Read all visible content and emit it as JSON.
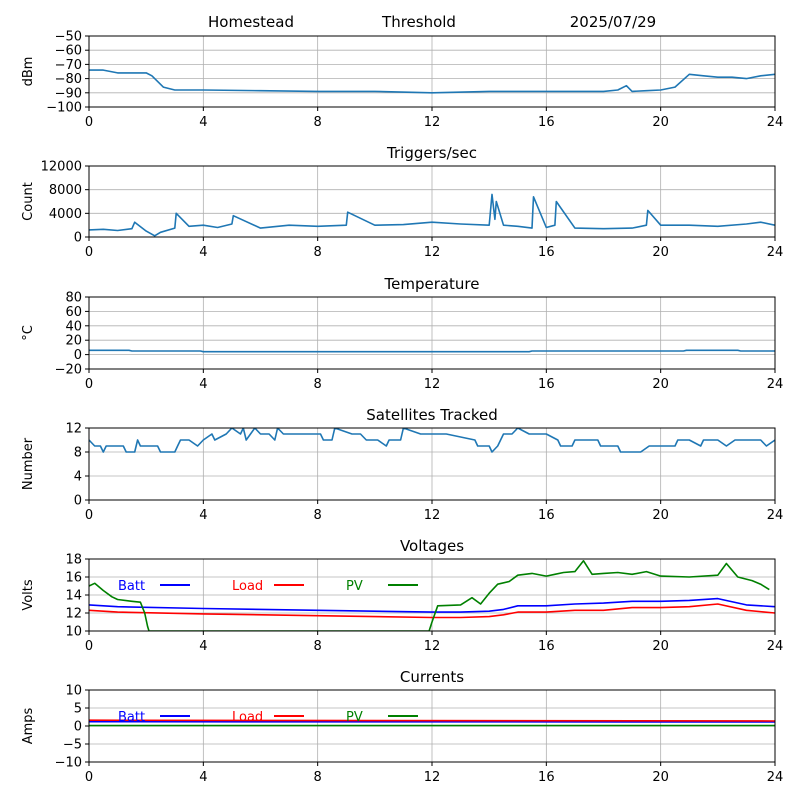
{
  "header": {
    "site": "Homestead",
    "mode": "Threshold",
    "date": "2025/07/29"
  },
  "chart_data": [
    {
      "type": "line",
      "title": "",
      "ylabel": "dBm",
      "xlim": [
        0,
        24
      ],
      "ylim": [
        -100,
        -50
      ],
      "xticks": [
        "0",
        "4",
        "8",
        "12",
        "16",
        "20",
        "24"
      ],
      "yticks": [
        "-50",
        "-60",
        "-70",
        "-80",
        "-90",
        "-100"
      ],
      "grid": true,
      "series": [
        {
          "color": "#1f77b4",
          "x": [
            0,
            0.5,
            1,
            1.5,
            2,
            2.2,
            2.6,
            3,
            4,
            6,
            8,
            10,
            12,
            14,
            16,
            18,
            18.5,
            18.8,
            19,
            19.5,
            20,
            20.5,
            21,
            21.5,
            22,
            22.5,
            23,
            23.5,
            24
          ],
          "y": [
            -74,
            -74,
            -76,
            -76,
            -76,
            -78,
            -86,
            -88,
            -88,
            -88.5,
            -89,
            -89,
            -90,
            -89,
            -89,
            -89,
            -88,
            -85,
            -89,
            -88.5,
            -88,
            -86,
            -77,
            -78,
            -79,
            -79,
            -80,
            -78,
            -77
          ]
        }
      ]
    },
    {
      "type": "line",
      "title": "Triggers/sec",
      "ylabel": "Count",
      "xlim": [
        0,
        24
      ],
      "ylim": [
        0,
        12000
      ],
      "xticks": [
        "0",
        "4",
        "8",
        "12",
        "16",
        "20",
        "24"
      ],
      "yticks": [
        "12000",
        "8000",
        "4000",
        "0"
      ],
      "grid": true,
      "series": [
        {
          "color": "#1f77b4",
          "x": [
            0,
            0.5,
            1,
            1.5,
            1.6,
            2,
            2.3,
            2.5,
            3,
            3.05,
            3.5,
            4,
            4.5,
            5,
            5.05,
            6,
            7,
            8,
            9,
            9.05,
            10,
            11,
            12,
            13,
            14,
            14.1,
            14.2,
            14.25,
            14.5,
            15,
            15.5,
            15.55,
            16,
            16.3,
            16.35,
            17,
            18,
            19,
            19.5,
            19.55,
            20,
            21,
            22,
            23,
            23.5,
            24
          ],
          "y": [
            1200,
            1300,
            1100,
            1400,
            2500,
            1000,
            200,
            800,
            1500,
            4000,
            1800,
            2000,
            1600,
            2200,
            3600,
            1500,
            2000,
            1800,
            2000,
            4200,
            2000,
            2100,
            2500,
            2200,
            2000,
            7200,
            3000,
            6000,
            2000,
            1800,
            1500,
            6800,
            1600,
            2000,
            6000,
            1500,
            1400,
            1500,
            2000,
            4500,
            2000,
            2000,
            1800,
            2200,
            2500,
            2000
          ]
        }
      ]
    },
    {
      "type": "line",
      "title": "Temperature",
      "ylabel": "°C",
      "xlim": [
        0,
        24
      ],
      "ylim": [
        -20,
        80
      ],
      "xticks": [
        "0",
        "4",
        "8",
        "12",
        "16",
        "20",
        "24"
      ],
      "yticks": [
        "80",
        "60",
        "40",
        "20",
        "0",
        "-20"
      ],
      "grid": true,
      "series": [
        {
          "color": "#1f77b4",
          "x": [
            0,
            1.4,
            1.5,
            3.9,
            4,
            15.4,
            15.5,
            20.8,
            20.9,
            22.7,
            22.8,
            24
          ],
          "y": [
            6,
            6,
            5,
            5,
            4,
            4,
            5,
            5,
            6,
            6,
            5,
            5
          ]
        }
      ]
    },
    {
      "type": "line",
      "title": "Satellites Tracked",
      "ylabel": "Number",
      "xlim": [
        0,
        24
      ],
      "ylim": [
        0,
        12
      ],
      "xticks": [
        "0",
        "4",
        "8",
        "12",
        "16",
        "20",
        "24"
      ],
      "yticks": [
        "12",
        "8",
        "4",
        "0"
      ],
      "grid": true,
      "series": [
        {
          "color": "#1f77b4",
          "x": [
            0,
            0.2,
            0.4,
            0.5,
            0.6,
            0.7,
            1.2,
            1.3,
            1.6,
            1.7,
            1.8,
            2.4,
            2.5,
            3,
            3.1,
            3.2,
            3.5,
            3.8,
            4,
            4.3,
            4.4,
            4.8,
            5,
            5.3,
            5.4,
            5.5,
            5.8,
            6,
            6.3,
            6.5,
            6.6,
            6.8,
            7.3,
            8.1,
            8.2,
            8.5,
            8.6,
            9.2,
            9.5,
            9.7,
            10.1,
            10.4,
            10.5,
            10.9,
            11,
            11.6,
            11.8,
            11.9,
            12.3,
            12.5,
            13.5,
            13.6,
            14,
            14.1,
            14.3,
            14.4,
            14.5,
            14.8,
            15,
            15.4,
            15.5,
            16,
            16.4,
            16.5,
            16.9,
            17,
            17.8,
            17.9,
            18.5,
            18.6,
            19,
            19.3,
            19.6,
            20.5,
            20.6,
            21,
            21.4,
            21.5,
            22,
            22.3,
            22.6,
            23,
            23.5,
            23.7,
            24
          ],
          "y": [
            10,
            9,
            9,
            8,
            9,
            9,
            9,
            8,
            8,
            10,
            9,
            9,
            8,
            8,
            9,
            10,
            10,
            9,
            10,
            11,
            10,
            11,
            12,
            11,
            12,
            10,
            12,
            11,
            11,
            10,
            12,
            11,
            11,
            11,
            10,
            10,
            12,
            11,
            11,
            10,
            10,
            9,
            10,
            10,
            12,
            11,
            11,
            11,
            11,
            11,
            10,
            9,
            9,
            8,
            9,
            10,
            11,
            11,
            12,
            11,
            11,
            11,
            10,
            9,
            9,
            10,
            10,
            9,
            9,
            8,
            8,
            8,
            9,
            9,
            10,
            10,
            9,
            10,
            10,
            9,
            10,
            10,
            10,
            9,
            10
          ]
        }
      ]
    },
    {
      "type": "line",
      "title": "Voltages",
      "ylabel": "Volts",
      "xlim": [
        0,
        24
      ],
      "ylim": [
        10,
        18
      ],
      "xticks": [
        "0",
        "4",
        "8",
        "12",
        "16",
        "20",
        "24"
      ],
      "yticks": [
        "18",
        "16",
        "14",
        "12",
        "10"
      ],
      "grid": true,
      "legend": "top-left",
      "series": [
        {
          "name": "Batt",
          "color": "#0000ff",
          "x": [
            0,
            1,
            4,
            8,
            12,
            13,
            14,
            14.5,
            15,
            16,
            17,
            18,
            19,
            20,
            21,
            22,
            23,
            24
          ],
          "y": [
            12.9,
            12.7,
            12.5,
            12.3,
            12.1,
            12.1,
            12.2,
            12.4,
            12.8,
            12.8,
            13.0,
            13.1,
            13.3,
            13.3,
            13.4,
            13.6,
            12.9,
            12.7
          ]
        },
        {
          "name": "Load",
          "color": "#ff0000",
          "x": [
            0,
            1,
            4,
            8,
            12,
            13,
            14,
            14.5,
            15,
            16,
            17,
            18,
            19,
            20,
            21,
            22,
            23,
            24
          ],
          "y": [
            12.3,
            12.1,
            11.9,
            11.7,
            11.5,
            11.5,
            11.6,
            11.8,
            12.1,
            12.1,
            12.3,
            12.3,
            12.6,
            12.6,
            12.7,
            13.0,
            12.3,
            12.0
          ]
        },
        {
          "name": "PV",
          "color": "#008000",
          "x": [
            0,
            0.2,
            0.5,
            0.8,
            1,
            1.5,
            1.8,
            1.95,
            2.05,
            2.1,
            11.9,
            12,
            12.2,
            13,
            13.4,
            13.7,
            14,
            14.3,
            14.7,
            15,
            15.5,
            16,
            16.3,
            16.6,
            17,
            17.3,
            17.6,
            18,
            18.5,
            19,
            19.5,
            20,
            21,
            22,
            22.3,
            22.7,
            23.2,
            23.5,
            23.8
          ],
          "y": [
            15.0,
            15.3,
            14.5,
            13.8,
            13.5,
            13.3,
            13.2,
            12.0,
            10.5,
            10.0,
            10.0,
            11.0,
            12.8,
            12.9,
            13.7,
            13.0,
            14.2,
            15.2,
            15.5,
            16.2,
            16.4,
            16.1,
            16.3,
            16.5,
            16.6,
            17.8,
            16.3,
            16.4,
            16.5,
            16.3,
            16.6,
            16.1,
            16.0,
            16.2,
            17.5,
            16.0,
            15.6,
            15.2,
            14.6
          ]
        }
      ]
    },
    {
      "type": "line",
      "title": "Currents",
      "ylabel": "Amps",
      "xlim": [
        0,
        24
      ],
      "ylim": [
        -10,
        10
      ],
      "xticks": [
        "0",
        "4",
        "8",
        "12",
        "16",
        "20",
        "24"
      ],
      "yticks": [
        "10",
        "5",
        "0",
        "-5",
        "-10"
      ],
      "grid": true,
      "legend": "top-left",
      "series": [
        {
          "name": "Batt",
          "color": "#0000ff",
          "x": [
            0,
            24
          ],
          "y": [
            1.2,
            1.1
          ]
        },
        {
          "name": "Load",
          "color": "#ff0000",
          "x": [
            0,
            24
          ],
          "y": [
            1.6,
            1.4
          ]
        },
        {
          "name": "PV",
          "color": "#008000",
          "x": [
            0,
            24
          ],
          "y": [
            0.1,
            0.1
          ]
        }
      ]
    }
  ]
}
